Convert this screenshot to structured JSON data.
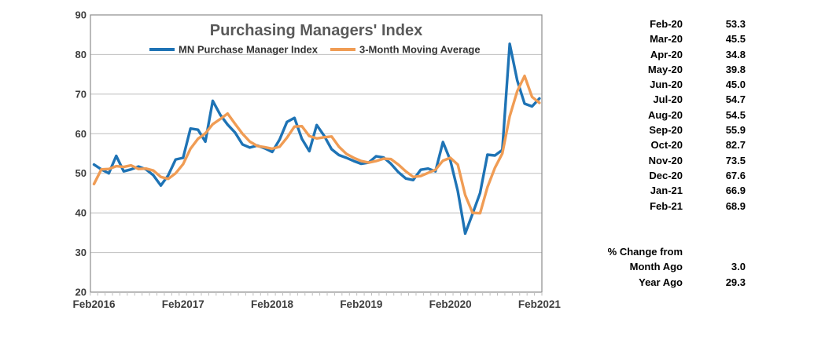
{
  "chart": {
    "title": "Purchasing Managers' Index",
    "legend": [
      {
        "label": "MN Purchase Manager Index",
        "color": "#1e73b5"
      },
      {
        "label": "3-Month Moving Average",
        "color": "#f09c54"
      }
    ]
  },
  "chart_data": {
    "type": "line",
    "title": "Purchasing Managers' Index",
    "x": [
      "Feb-16",
      "Mar-16",
      "Apr-16",
      "May-16",
      "Jun-16",
      "Jul-16",
      "Aug-16",
      "Sep-16",
      "Oct-16",
      "Nov-16",
      "Dec-16",
      "Jan-17",
      "Feb-17",
      "Mar-17",
      "Apr-17",
      "May-17",
      "Jun-17",
      "Jul-17",
      "Aug-17",
      "Sep-17",
      "Oct-17",
      "Nov-17",
      "Dec-17",
      "Jan-18",
      "Feb-18",
      "Mar-18",
      "Apr-18",
      "May-18",
      "Jun-18",
      "Jul-18",
      "Aug-18",
      "Sep-18",
      "Oct-18",
      "Nov-18",
      "Dec-18",
      "Jan-19",
      "Feb-19",
      "Mar-19",
      "Apr-19",
      "May-19",
      "Jun-19",
      "Jul-19",
      "Aug-19",
      "Sep-19",
      "Oct-19",
      "Nov-19",
      "Dec-19",
      "Jan-20",
      "Feb-20",
      "Mar-20",
      "Apr-20",
      "May-20",
      "Jun-20",
      "Jul-20",
      "Aug-20",
      "Sep-20",
      "Oct-20",
      "Nov-20",
      "Dec-20",
      "Jan-21",
      "Feb-21"
    ],
    "series": [
      {
        "name": "MN Purchase Manager Index",
        "color": "#1e73b5",
        "values": [
          52.2,
          51.0,
          50.0,
          54.4,
          50.5,
          51.0,
          51.7,
          51.0,
          49.5,
          46.9,
          49.5,
          53.5,
          53.9,
          61.3,
          61.0,
          58.0,
          68.3,
          64.8,
          62.3,
          60.3,
          57.3,
          56.5,
          57.0,
          56.3,
          55.4,
          58.5,
          63.0,
          64.0,
          58.7,
          55.6,
          62.2,
          59.5,
          56.1,
          54.6,
          53.9,
          53.1,
          52.4,
          52.7,
          54.3,
          54.0,
          52.4,
          50.3,
          48.7,
          48.3,
          50.9,
          51.2,
          50.5,
          57.9,
          53.3,
          45.5,
          34.8,
          39.8,
          45.0,
          54.7,
          54.5,
          55.9,
          82.7,
          73.5,
          67.6,
          66.9,
          68.9
        ]
      },
      {
        "name": "3-Month Moving Average",
        "color": "#f09c54",
        "values": [
          47.3,
          51.0,
          51.1,
          51.8,
          51.6,
          52.0,
          51.1,
          51.2,
          50.7,
          49.1,
          48.6,
          50.0,
          52.3,
          56.2,
          58.7,
          60.1,
          62.4,
          63.7,
          65.1,
          62.5,
          60.0,
          58.0,
          56.9,
          56.6,
          56.2,
          56.7,
          59.0,
          61.8,
          61.9,
          59.4,
          58.8,
          59.1,
          59.3,
          56.7,
          54.9,
          53.9,
          53.1,
          52.7,
          53.1,
          53.7,
          53.6,
          52.2,
          50.5,
          49.1,
          49.3,
          50.1,
          50.9,
          53.2,
          53.9,
          52.2,
          44.5,
          40.0,
          39.9,
          46.5,
          51.4,
          55.0,
          64.4,
          70.7,
          74.6,
          69.3,
          67.8
        ]
      }
    ],
    "xticks": [
      "Feb2016",
      "Feb2017",
      "Feb2018",
      "Feb2019",
      "Feb2020",
      "Feb2021"
    ],
    "yticks": [
      90,
      80,
      70,
      60,
      50,
      40,
      30,
      20
    ],
    "ylim": [
      20,
      90
    ],
    "grid": "horizontal",
    "legend_position": "top-inside"
  },
  "side_table": {
    "rows": [
      {
        "month": "Feb-20",
        "value": "53.3"
      },
      {
        "month": "Mar-20",
        "value": "45.5"
      },
      {
        "month": "Apr-20",
        "value": "34.8"
      },
      {
        "month": "May-20",
        "value": "39.8"
      },
      {
        "month": "Jun-20",
        "value": "45.0"
      },
      {
        "month": "Jul-20",
        "value": "54.7"
      },
      {
        "month": "Aug-20",
        "value": "54.5"
      },
      {
        "month": "Sep-20",
        "value": "55.9"
      },
      {
        "month": "Oct-20",
        "value": "82.7"
      },
      {
        "month": "Nov-20",
        "value": "73.5"
      },
      {
        "month": "Dec-20",
        "value": "67.6"
      },
      {
        "month": "Jan-21",
        "value": "66.9"
      },
      {
        "month": "Feb-21",
        "value": "68.9"
      }
    ]
  },
  "pct_change": {
    "heading": "% Change from",
    "rows": [
      {
        "label": "Month Ago",
        "value": "3.0"
      },
      {
        "label": "Year Ago",
        "value": "29.3"
      }
    ]
  },
  "colors": {
    "pmi_line": "#1e73b5",
    "ma_line": "#f09c54",
    "gridline": "#bfbfbf",
    "plot_border": "#8c8c8c",
    "title_text": "#595959",
    "axis_text": "#3d3d3d"
  }
}
